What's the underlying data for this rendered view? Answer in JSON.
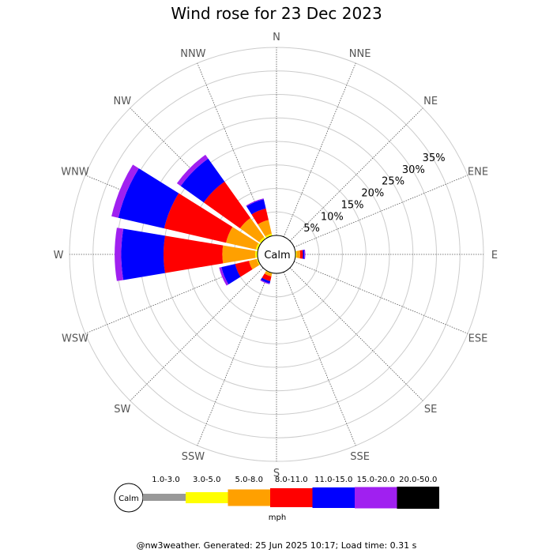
{
  "title": "Wind rose for 23 Dec 2023",
  "directions": [
    "N",
    "NNE",
    "NE",
    "ENE",
    "E",
    "ESE",
    "SE",
    "SSE",
    "S",
    "SSW",
    "SW",
    "WSW",
    "W",
    "WNW",
    "NW",
    "NNW"
  ],
  "calm_label": "Calm",
  "units_label": "mph",
  "footer": "@nw3weather. Generated: 25 Jun 2025 10:17; Load time: 0.31 s",
  "chart_data": {
    "type": "wind-rose",
    "title": "Wind rose for 23 Dec 2023",
    "radial_unit": "%",
    "ring_labels": [
      "5%",
      "10%",
      "15%",
      "20%",
      "25%",
      "30%",
      "35%"
    ],
    "ring_values": [
      5,
      10,
      15,
      20,
      25,
      30,
      35
    ],
    "speed_bins": [
      {
        "label": "1.0-3.0",
        "color": "#999999"
      },
      {
        "label": "3.0-5.0",
        "color": "#ffff00"
      },
      {
        "label": "5.0-8.0",
        "color": "#ffa000"
      },
      {
        "label": "8.0-11.0",
        "color": "#ff0000"
      },
      {
        "label": "11.0-15.0",
        "color": "#0000ff"
      },
      {
        "label": "15.0-20.0",
        "color": "#a020f0"
      },
      {
        "label": "20.0-50.0",
        "color": "#000000"
      }
    ],
    "cumulative_by_direction": {
      "N": [
        0,
        0,
        0,
        0,
        0,
        0,
        0
      ],
      "NNE": [
        0,
        0,
        0,
        0,
        0,
        0,
        0
      ],
      "NE": [
        0,
        0,
        0,
        0,
        0,
        0,
        0
      ],
      "ENE": [
        0,
        0,
        0,
        0,
        0,
        0,
        0
      ],
      "E": [
        0,
        0.3,
        1.0,
        1.6,
        1.9,
        2.1,
        2.1
      ],
      "ESE": [
        0,
        0,
        0,
        0,
        0,
        0,
        0
      ],
      "SE": [
        0,
        0,
        0,
        0,
        0,
        0,
        0
      ],
      "SSE": [
        0,
        0,
        0,
        0,
        0,
        0,
        0
      ],
      "S": [
        0,
        0,
        0,
        0,
        0,
        0,
        0
      ],
      "SSW": [
        0,
        0.2,
        0.8,
        1.8,
        2.3,
        2.5,
        2.5
      ],
      "SW": [
        0,
        0,
        0,
        0,
        0,
        0,
        0
      ],
      "WSW": [
        0,
        0.3,
        2.0,
        5.0,
        8.0,
        8.5,
        8.5
      ],
      "W": [
        0,
        0.5,
        7.5,
        20.0,
        29.0,
        30.4,
        30.4
      ],
      "WNW": [
        0,
        0.5,
        7.0,
        20.5,
        30.5,
        32.0,
        32.0
      ],
      "NW": [
        0,
        0.5,
        5.5,
        15.0,
        21.0,
        22.0,
        22.0
      ],
      "NNW": [
        0,
        0.5,
        3.5,
        6.0,
        8.0,
        8.2,
        8.2
      ]
    }
  }
}
